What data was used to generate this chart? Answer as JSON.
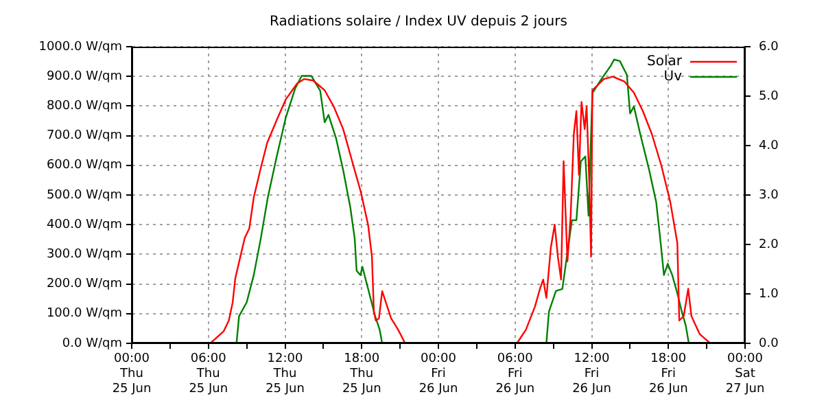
{
  "chart_data": {
    "type": "line",
    "title": "Radiations solaire / Index UV depuis 2 jours",
    "legend": "top right",
    "grid": true,
    "marker": "none",
    "line_style": "solid",
    "xlim": [
      "--06-25T00:00",
      "--06-27T00:00"
    ],
    "xticks": [
      {
        "value": "--06-25T00:00",
        "label": "00:00\nThu\n25 Jun"
      },
      {
        "value": "--06-25T03:00",
        "label": null
      },
      {
        "value": "--06-25T06:00",
        "label": "06:00\nThu\n25 Jun"
      },
      {
        "value": "--06-25T09:00",
        "label": null
      },
      {
        "value": "--06-25T12:00",
        "label": "12:00\nThu\n25 Jun"
      },
      {
        "value": "--06-25T15:00",
        "label": null
      },
      {
        "value": "--06-25T18:00",
        "label": "18:00\nThu\n25 Jun"
      },
      {
        "value": "--06-25T21:00",
        "label": null
      },
      {
        "value": "--06-26T00:00",
        "label": "00:00\nFri\n26 Jun"
      },
      {
        "value": "--06-26T03:00",
        "label": null
      },
      {
        "value": "--06-26T06:00",
        "label": "06:00\nFri\n26 Jun"
      },
      {
        "value": "--06-26T09:00",
        "label": null
      },
      {
        "value": "--06-26T12:00",
        "label": "12:00\nFri\n26 Jun"
      },
      {
        "value": "--06-26T15:00",
        "label": null
      },
      {
        "value": "--06-26T18:00",
        "label": "18:00\nFri\n26 Jun"
      },
      {
        "value": "--06-26T21:00",
        "label": null
      },
      {
        "value": "--06-27T00:00",
        "label": "00:00\nSat\n27 Jun"
      }
    ],
    "ylim": [
      0,
      1000
    ],
    "yticks": [
      {
        "value": 0,
        "label": "0.0 W/qm"
      },
      {
        "value": 100,
        "label": "100.0 W/qm"
      },
      {
        "value": 200,
        "label": "200.0 W/qm"
      },
      {
        "value": 300,
        "label": "300.0 W/qm"
      },
      {
        "value": 400,
        "label": "400.0 W/qm"
      },
      {
        "value": 500,
        "label": "500.0 W/qm"
      },
      {
        "value": 600,
        "label": "600.0 W/qm"
      },
      {
        "value": 700,
        "label": "700.0 W/qm"
      },
      {
        "value": 800,
        "label": "800.0 W/qm"
      },
      {
        "value": 900,
        "label": "900.0 W/qm"
      },
      {
        "value": 1000,
        "label": "1000.0 W/qm"
      }
    ],
    "y2lim": [
      0,
      6
    ],
    "y2ticks": [
      {
        "value": 0,
        "label": "0.0"
      },
      {
        "value": 1,
        "label": "1.0"
      },
      {
        "value": 2,
        "label": "2.0"
      },
      {
        "value": 3,
        "label": "3.0"
      },
      {
        "value": 4,
        "label": "4.0"
      },
      {
        "value": 5,
        "label": "5.0"
      },
      {
        "value": 6,
        "label": "6.0"
      }
    ],
    "series": [
      {
        "name": "Solar",
        "color": "#ff0000",
        "x": [
          "--06-25T06:09",
          "--06-25T07:12",
          "--06-25T07:36",
          "--06-25T07:54",
          "--06-25T08:06",
          "--06-25T08:30",
          "--06-25T08:51",
          "--06-25T09:12",
          "--06-25T09:33",
          "--06-25T10:06",
          "--06-25T10:36",
          "--06-25T11:21",
          "--06-25T12:03",
          "--06-25T12:57",
          "--06-25T13:30",
          "--06-25T14:12",
          "--06-25T15:06",
          "--06-25T15:48",
          "--06-25T16:33",
          "--06-25T17:15",
          "--06-25T17:57",
          "--06-25T18:30",
          "--06-25T18:48",
          "--06-25T18:57",
          "--06-25T19:06",
          "--06-25T19:21",
          "--06-25T19:36",
          "--06-25T19:57",
          "--06-25T20:18",
          "--06-25T20:51",
          "--06-25T21:24",
          "--06-26T06:09",
          "--06-26T06:51",
          "--06-26T07:33",
          "--06-26T07:57",
          "--06-26T08:12",
          "--06-26T08:27",
          "--06-26T08:48",
          "--06-26T09:06",
          "--06-26T09:21",
          "--06-26T09:36",
          "--06-26T09:48",
          "--06-26T10:06",
          "--06-26T10:21",
          "--06-26T10:36",
          "--06-26T10:48",
          "--06-26T11:00",
          "--06-26T11:12",
          "--06-26T11:27",
          "--06-26T11:36",
          "--06-26T11:48",
          "--06-26T11:57",
          "--06-26T12:03",
          "--06-26T12:24",
          "--06-26T12:57",
          "--06-26T13:39",
          "--06-26T14:33",
          "--06-26T15:18",
          "--06-26T16:00",
          "--06-26T16:42",
          "--06-26T17:27",
          "--06-26T18:09",
          "--06-26T18:42",
          "--06-26T18:51",
          "--06-26T19:12",
          "--06-26T19:33",
          "--06-26T19:48",
          "--06-26T20:27",
          "--06-26T21:12",
          "--06-26T21:33"
        ],
        "values": [
          0,
          41,
          77,
          138,
          218,
          292,
          356,
          387,
          492,
          591,
          676,
          753,
          822,
          876,
          891,
          886,
          853,
          799,
          722,
          614,
          507,
          399,
          292,
          107,
          77,
          84,
          176,
          130,
          84,
          46,
          0,
          0,
          46,
          123,
          184,
          215,
          153,
          323,
          400,
          292,
          215,
          614,
          276,
          430,
          706,
          783,
          568,
          814,
          722,
          799,
          553,
          292,
          853,
          868,
          891,
          899,
          883,
          845,
          783,
          706,
          599,
          476,
          338,
          77,
          92,
          184,
          92,
          31,
          3,
          0
        ]
      },
      {
        "name": "Uv",
        "color": "#008000",
        "axis": "y2",
        "x": [
          "--06-25T08:12",
          "--06-25T08:24",
          "--06-25T09:00",
          "--06-25T09:33",
          "--06-25T10:06",
          "--06-25T10:39",
          "--06-25T11:21",
          "--06-25T12:03",
          "--06-25T12:48",
          "--06-25T13:18",
          "--06-25T14:03",
          "--06-25T14:45",
          "--06-25T15:06",
          "--06-25T15:24",
          "--06-25T16:00",
          "--06-25T16:33",
          "--06-25T17:06",
          "--06-25T17:27",
          "--06-25T17:36",
          "--06-25T17:54",
          "--06-25T18:03",
          "--06-25T18:30",
          "--06-25T19:03",
          "--06-25T19:24",
          "--06-25T19:36",
          "--06-26T08:27",
          "--06-26T08:39",
          "--06-26T09:12",
          "--06-26T09:42",
          "--06-26T10:03",
          "--06-26T10:27",
          "--06-26T10:48",
          "--06-26T11:09",
          "--06-26T11:30",
          "--06-26T11:45",
          "--06-26T12:03",
          "--06-26T12:45",
          "--06-26T13:30",
          "--06-26T13:45",
          "--06-26T14:12",
          "--06-26T14:45",
          "--06-26T15:00",
          "--06-26T15:18",
          "--06-26T15:48",
          "--06-26T16:30",
          "--06-26T17:03",
          "--06-26T17:24",
          "--06-26T17:39",
          "--06-26T17:57",
          "--06-26T18:18",
          "--06-26T18:42",
          "--06-26T19:03",
          "--06-26T19:21",
          "--06-26T19:36"
        ],
        "values": [
          0,
          0.55,
          0.83,
          1.38,
          2.12,
          2.95,
          3.78,
          4.56,
          5.16,
          5.41,
          5.41,
          5.11,
          4.47,
          4.62,
          4.14,
          3.5,
          2.76,
          2.12,
          1.47,
          1.38,
          1.55,
          1.1,
          0.55,
          0.28,
          0,
          0,
          0.64,
          1.06,
          1.1,
          1.75,
          2.49,
          2.49,
          3.68,
          3.78,
          2.58,
          5.06,
          5.34,
          5.62,
          5.74,
          5.71,
          5.43,
          4.65,
          4.79,
          4.23,
          3.5,
          2.85,
          2.02,
          1.38,
          1.61,
          1.38,
          1.01,
          0.64,
          0.37,
          0
        ]
      }
    ]
  }
}
